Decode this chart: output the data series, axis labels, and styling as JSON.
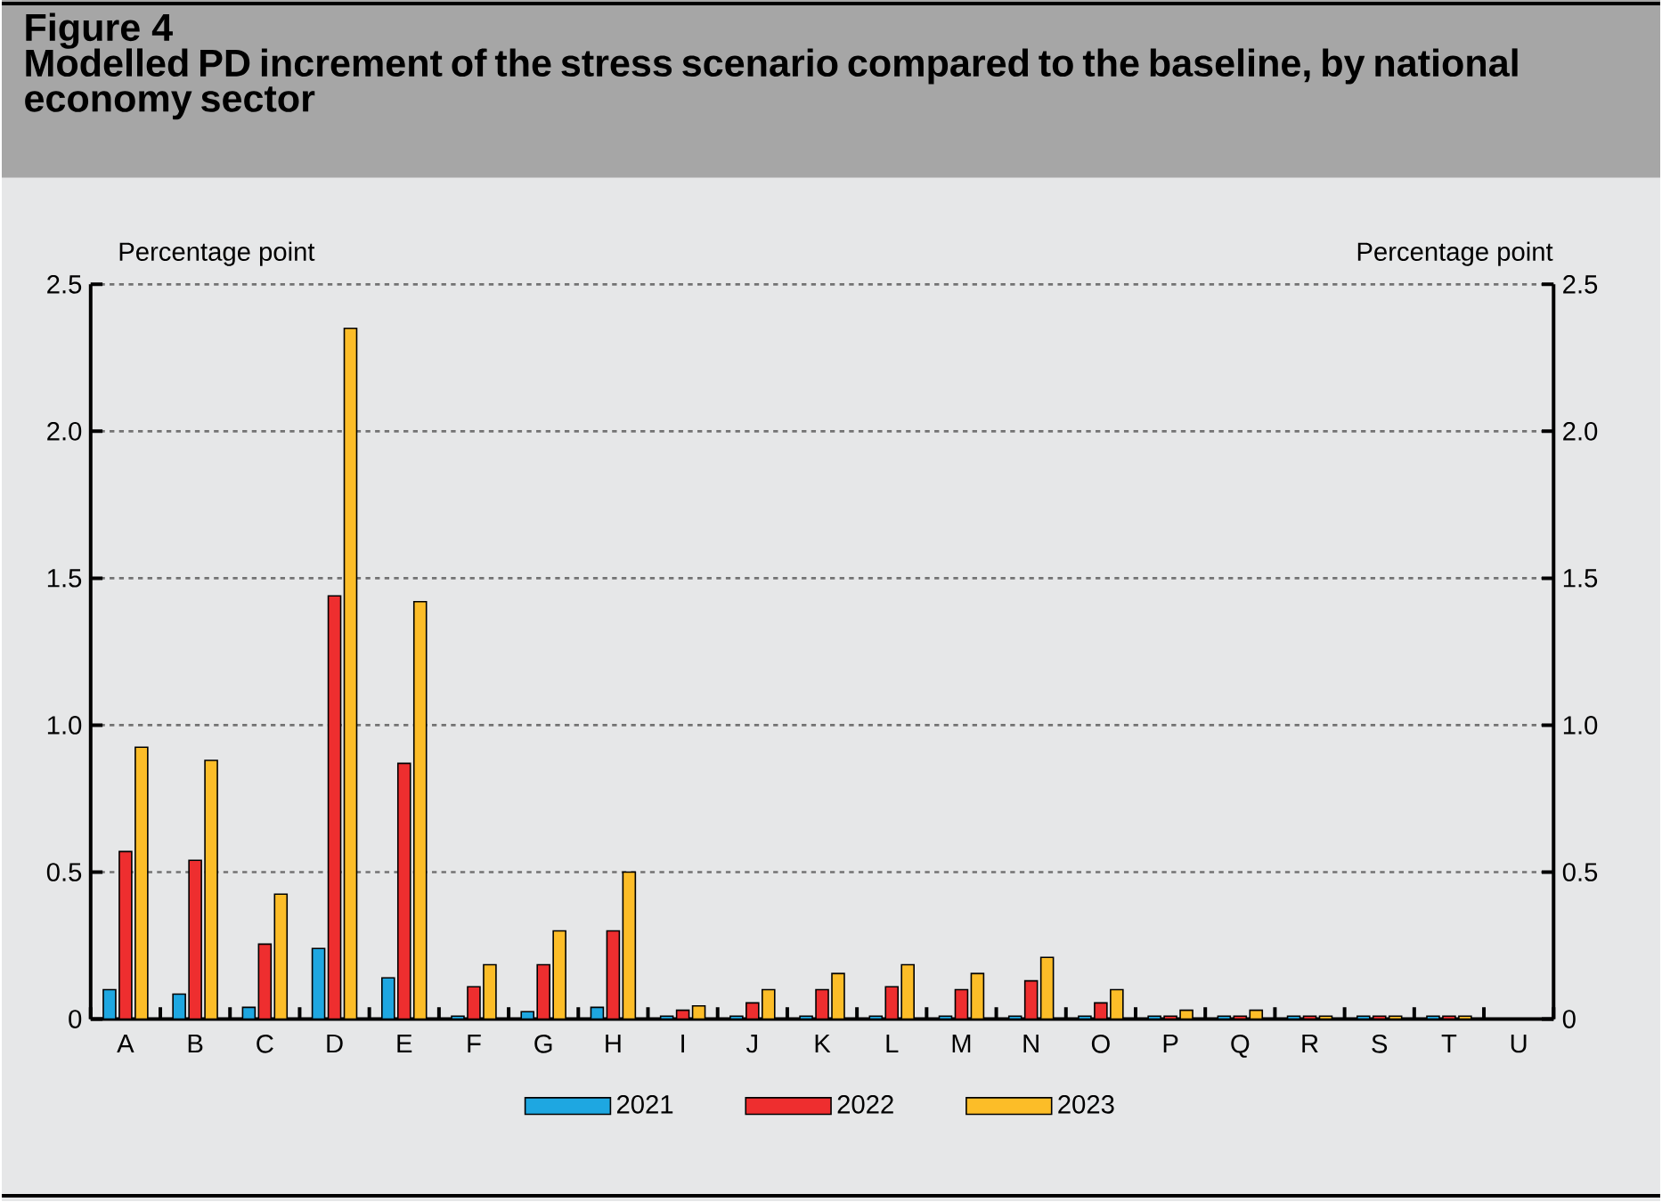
{
  "chart_data": {
    "type": "bar",
    "title": "Figure 4",
    "subtitle": "Modelled PD increment of the stress scenario compared to the baseline, by national economy sector",
    "ylabel": "Percentage point",
    "y2label": "Percentage point",
    "categories": [
      "A",
      "B",
      "C",
      "D",
      "E",
      "F",
      "G",
      "H",
      "I",
      "J",
      "K",
      "L",
      "M",
      "N",
      "O",
      "P",
      "Q",
      "R",
      "S",
      "T",
      "U"
    ],
    "series": [
      {
        "name": "2021",
        "color": "#1ea7e1",
        "values": [
          0.1,
          0.085,
          0.04,
          0.24,
          0.14,
          0.01,
          0.025,
          0.04,
          0.01,
          0.01,
          0.01,
          0.01,
          0.01,
          0.01,
          0.01,
          0.01,
          0.01,
          0.01,
          0.01,
          0.01,
          null
        ]
      },
      {
        "name": "2022",
        "color": "#ee2e2f",
        "values": [
          0.57,
          0.54,
          0.255,
          1.44,
          0.87,
          0.11,
          0.185,
          0.3,
          0.03,
          0.055,
          0.1,
          0.11,
          0.1,
          0.13,
          0.055,
          0.01,
          0.01,
          0.01,
          0.01,
          0.01,
          null
        ]
      },
      {
        "name": "2023",
        "color": "#fcbd28",
        "values": [
          0.925,
          0.88,
          0.425,
          2.35,
          1.42,
          0.185,
          0.3,
          0.5,
          0.045,
          0.1,
          0.155,
          0.185,
          0.155,
          0.21,
          0.1,
          0.03,
          0.03,
          0.01,
          0.01,
          0.01,
          null
        ]
      }
    ],
    "ylim": [
      0,
      2.5
    ],
    "yticks": [
      0,
      0.5,
      {
        "value": 1,
        "label": "1.0"
      },
      1.5,
      {
        "value": 2,
        "label": "2.0"
      },
      2.5
    ],
    "y2lim": [
      0,
      2.5
    ],
    "y2ticks": [
      0,
      0.5,
      {
        "value": 1,
        "label": "1.0"
      },
      1.5,
      {
        "value": 2,
        "label": "2.0"
      },
      2.5
    ],
    "grid": "y",
    "legend": "bottom"
  }
}
